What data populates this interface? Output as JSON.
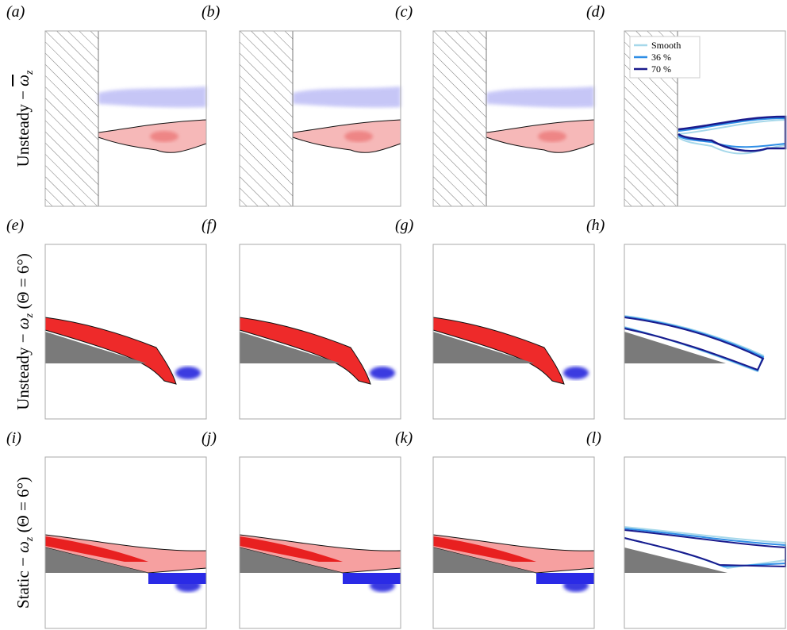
{
  "panels": [
    "(a)",
    "(b)",
    "(c)",
    "(d)",
    "(e)",
    "(f)",
    "(g)",
    "(h)",
    "(i)",
    "(j)",
    "(k)",
    "(l)"
  ],
  "rows": [
    {
      "prefix": "Unsteady − ",
      "symbol": "ω",
      "subscript": "z"
    },
    {
      "prefix": "Unsteady − ",
      "symbol": "ω",
      "subscript": "z",
      "suffix": " (Θ = 6°)"
    },
    {
      "prefix": "Static − ",
      "symbol": "ω",
      "subscript": "z",
      "suffix": " (Θ = 6°)"
    }
  ],
  "legend": [
    "Smooth",
    "36 %",
    "70 %"
  ]
}
